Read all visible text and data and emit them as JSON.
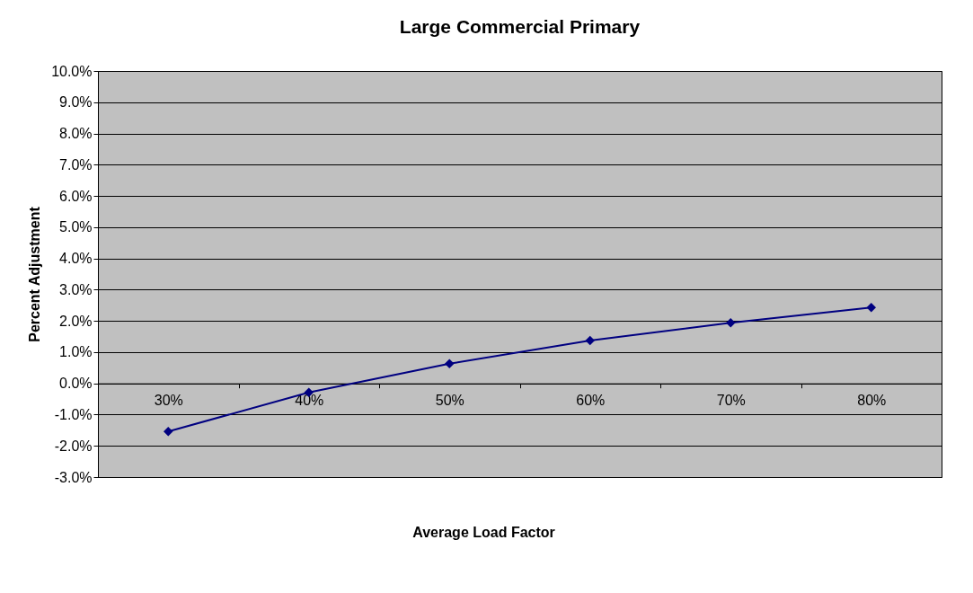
{
  "chart_data": {
    "type": "line",
    "title": "Large Commercial Primary",
    "xlabel": "Average Load Factor",
    "ylabel": "Percent Adjustment",
    "categories": [
      "30%",
      "40%",
      "50%",
      "60%",
      "70%",
      "80%"
    ],
    "series": [
      {
        "color": "#000080",
        "values": [
          -1.54,
          -0.29,
          0.63,
          1.37,
          1.94,
          2.43
        ]
      }
    ],
    "ylim": [
      -3,
      10
    ],
    "yticks": [
      {
        "value": -3,
        "label": "-3.0%"
      },
      {
        "value": -2,
        "label": "-2.0%"
      },
      {
        "value": -1,
        "label": "-1.0%"
      },
      {
        "value": 0,
        "label": "0.0%"
      },
      {
        "value": 1,
        "label": "1.0%"
      },
      {
        "value": 2,
        "label": "2.0%"
      },
      {
        "value": 3,
        "label": "3.0%"
      },
      {
        "value": 4,
        "label": "4.0%"
      },
      {
        "value": 5,
        "label": "5.0%"
      },
      {
        "value": 6,
        "label": "6.0%"
      },
      {
        "value": 7,
        "label": "7.0%"
      },
      {
        "value": 8,
        "label": "8.0%"
      },
      {
        "value": 9,
        "label": "9.0%"
      },
      {
        "value": 10,
        "label": "10.0%"
      }
    ],
    "grid": "y",
    "marker": "diamond",
    "line_style": "solid"
  }
}
